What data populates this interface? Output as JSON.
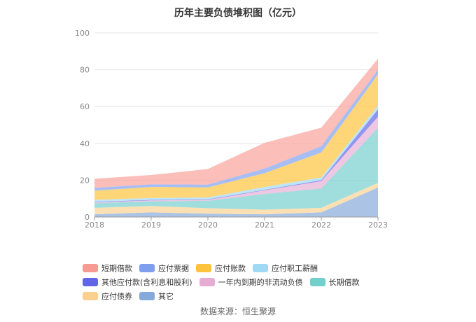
{
  "title": "历年主要负债堆积图（亿元）",
  "source": "数据来源：恒生聚源",
  "chart_data": {
    "type": "area",
    "stacked": true,
    "x": [
      "2018",
      "2019",
      "2020",
      "2021",
      "2022",
      "2023"
    ],
    "ylim": [
      0,
      100
    ],
    "yticks": [
      0,
      20,
      40,
      60,
      80,
      100
    ],
    "series": [
      {
        "name": "其它",
        "color": "#8fb0de",
        "values": [
          1.5,
          2.5,
          1.8,
          1.5,
          2.5,
          16.0
        ]
      },
      {
        "name": "应付债券",
        "color": "#fbd59a",
        "values": [
          3.5,
          3.5,
          3.0,
          2.5,
          2.5,
          2.5
        ]
      },
      {
        "name": "长期借款",
        "color": "#7fd3d0",
        "values": [
          2.5,
          2.5,
          4.0,
          8.5,
          10.5,
          30.0
        ]
      },
      {
        "name": "一年内到期的非流动负债",
        "color": "#e8b4d8",
        "values": [
          0.5,
          0.5,
          0.5,
          2.0,
          4.0,
          6.0
        ]
      },
      {
        "name": "其他应付款(含利息和股利)",
        "color": "#6e72e8",
        "values": [
          0.3,
          0.3,
          0.3,
          0.3,
          0.5,
          4.0
        ]
      },
      {
        "name": "应付职工薪酬",
        "color": "#a7dcf5",
        "values": [
          1.0,
          1.0,
          1.0,
          1.5,
          1.5,
          2.0
        ]
      },
      {
        "name": "应付账款",
        "color": "#fdc84a",
        "values": [
          5.0,
          6.0,
          5.5,
          7.5,
          13.5,
          17.0
        ]
      },
      {
        "name": "应付票据",
        "color": "#8aa8f2",
        "values": [
          1.5,
          1.5,
          1.5,
          2.5,
          3.5,
          2.5
        ]
      },
      {
        "name": "短期借款",
        "color": "#f9a8a2",
        "values": [
          5.0,
          5.0,
          8.5,
          14.0,
          10.0,
          6.0
        ]
      }
    ],
    "legend": [
      {
        "name": "短期借款",
        "color": "#f79b92"
      },
      {
        "name": "应付票据",
        "color": "#7f9ef0"
      },
      {
        "name": "应付账款",
        "color": "#fdc33c"
      },
      {
        "name": "应付职工薪酬",
        "color": "#9fd9f3"
      },
      {
        "name": "其他应付款(含利息和股利)",
        "color": "#6166e6"
      },
      {
        "name": "一年内到期的非流动负债",
        "color": "#e6acd4"
      },
      {
        "name": "长期借款",
        "color": "#72cfcb"
      },
      {
        "name": "应付债券",
        "color": "#fbd08f"
      },
      {
        "name": "其它",
        "color": "#86a9dc"
      }
    ],
    "legend_position": "bottom"
  }
}
